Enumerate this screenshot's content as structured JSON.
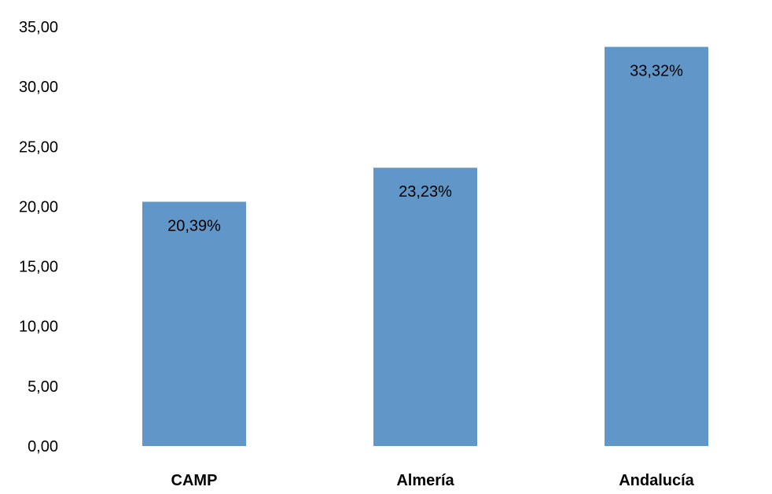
{
  "chart_data": {
    "type": "bar",
    "categories": [
      "CAMP",
      "Almería",
      "Andalucía"
    ],
    "values": [
      20.39,
      23.23,
      33.32
    ],
    "data_labels": [
      "20,39%",
      "23,23%",
      "33,32%"
    ],
    "y_tick_labels": [
      "0,00",
      "5,00",
      "10,00",
      "15,00",
      "20,00",
      "25,00",
      "30,00",
      "35,00"
    ],
    "y_ticks": [
      0,
      5,
      10,
      15,
      20,
      25,
      30,
      35
    ],
    "ylim": [
      0,
      35
    ],
    "grid": false,
    "legend": "none",
    "bar_color": "#6196C8"
  }
}
